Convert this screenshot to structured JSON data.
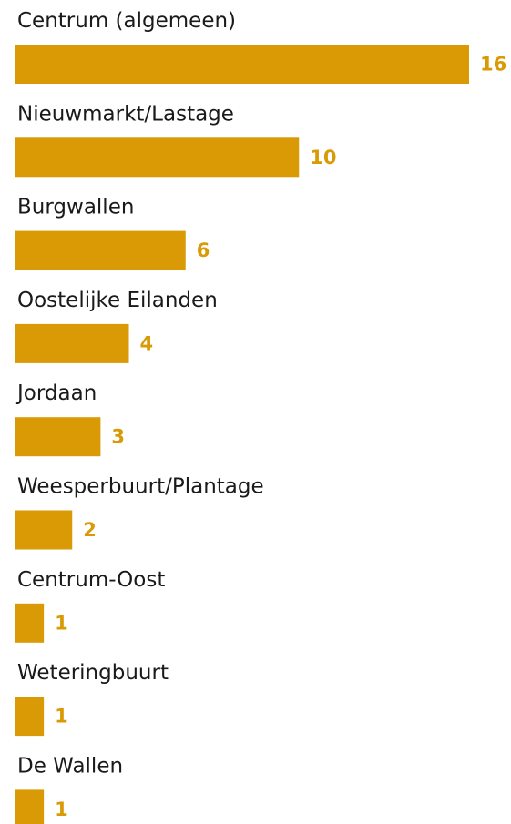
{
  "chart_data": {
    "type": "bar",
    "orientation": "horizontal",
    "categories": [
      "Centrum (algemeen)",
      "Nieuwmarkt/Lastage",
      "Burgwallen",
      "Oostelijke Eilanden",
      "Jordaan",
      "Weesperbuurt/Plantage",
      "Centrum-Oost",
      "Weteringbuurt",
      "De Wallen"
    ],
    "values": [
      16,
      10,
      6,
      4,
      3,
      2,
      1,
      1,
      1
    ],
    "color": "#d99a06"
  }
}
